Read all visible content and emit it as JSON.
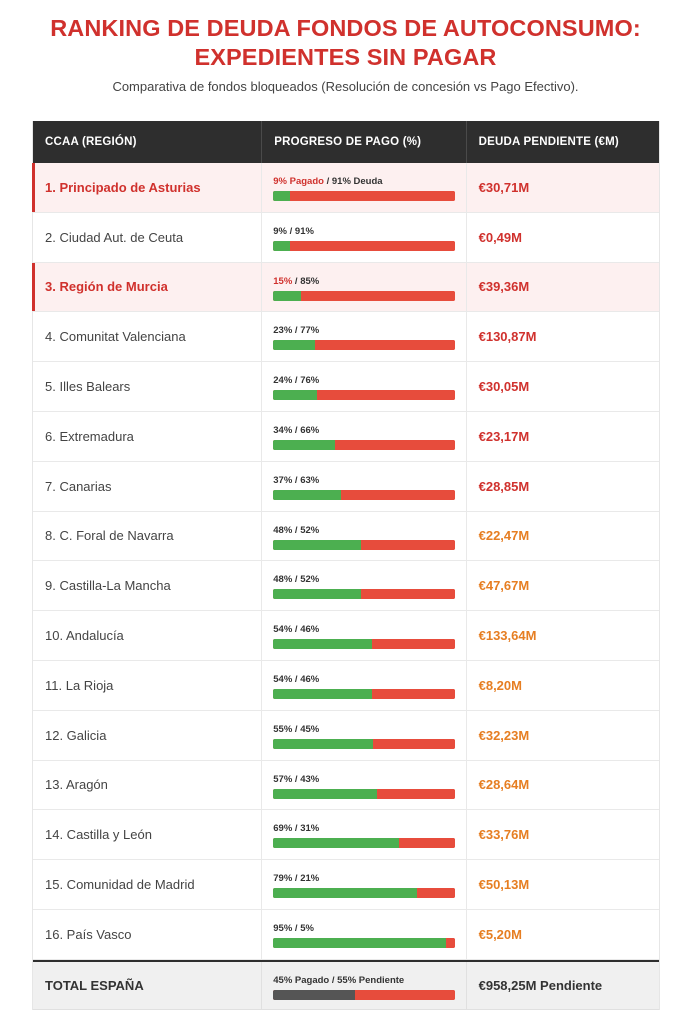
{
  "header": {
    "title_line1": "RANKING DE DEUDA FONDOS DE AUTOCONSUMO:",
    "title_line2": "EXPEDIENTES SIN PAGAR",
    "subtitle": "Comparativa de fondos bloqueados (Resolución de concesión vs Pago Efectivo)."
  },
  "columns": {
    "region": "CCAA (REGIÓN)",
    "progress": "PROGRESO DE PAGO (%)",
    "debt": "DEUDA PENDIENTE (€M)"
  },
  "colors": {
    "accent_red": "#d0312d",
    "paid_green": "#4caf50",
    "due_red": "#e74c3c",
    "orange": "#e67e22",
    "total_paid": "#555555"
  },
  "rows": [
    {
      "region": "1. Principado de Asturias",
      "paid_pct": 9,
      "label_paid": "9% Pagado",
      "label_due": " / 91% Deuda",
      "debt": "€30,71M",
      "debt_color": "#d0312d",
      "highlight": true
    },
    {
      "region": "2. Ciudad Aut. de Ceuta",
      "paid_pct": 9,
      "label_paid": "",
      "label_due": "9% / 91%",
      "debt": "€0,49M",
      "debt_color": "#d0312d",
      "highlight": false
    },
    {
      "region": "3. Región de Murcia",
      "paid_pct": 15,
      "label_paid": "15%",
      "label_due": " / 85%",
      "debt": "€39,36M",
      "debt_color": "#d0312d",
      "highlight": true
    },
    {
      "region": "4. Comunitat Valenciana",
      "paid_pct": 23,
      "label_paid": "",
      "label_due": "23% / 77%",
      "debt": "€130,87M",
      "debt_color": "#d0312d",
      "highlight": false
    },
    {
      "region": "5. Illes Balears",
      "paid_pct": 24,
      "label_paid": "",
      "label_due": "24% / 76%",
      "debt": "€30,05M",
      "debt_color": "#d0312d",
      "highlight": false
    },
    {
      "region": "6. Extremadura",
      "paid_pct": 34,
      "label_paid": "",
      "label_due": "34% / 66%",
      "debt": "€23,17M",
      "debt_color": "#d0312d",
      "highlight": false
    },
    {
      "region": "7. Canarias",
      "paid_pct": 37,
      "label_paid": "",
      "label_due": "37% / 63%",
      "debt": "€28,85M",
      "debt_color": "#d0312d",
      "highlight": false
    },
    {
      "region": "8. C. Foral de Navarra",
      "paid_pct": 48,
      "label_paid": "",
      "label_due": "48% / 52%",
      "debt": "€22,47M",
      "debt_color": "#e67e22",
      "highlight": false
    },
    {
      "region": "9. Castilla-La Mancha",
      "paid_pct": 48,
      "label_paid": "",
      "label_due": "48% / 52%",
      "debt": "€47,67M",
      "debt_color": "#e67e22",
      "highlight": false
    },
    {
      "region": "10. Andalucía",
      "paid_pct": 54,
      "label_paid": "",
      "label_due": "54% / 46%",
      "debt": "€133,64M",
      "debt_color": "#e67e22",
      "highlight": false
    },
    {
      "region": "11. La Rioja",
      "paid_pct": 54,
      "label_paid": "",
      "label_due": "54% / 46%",
      "debt": "€8,20M",
      "debt_color": "#e67e22",
      "highlight": false
    },
    {
      "region": "12. Galicia",
      "paid_pct": 55,
      "label_paid": "",
      "label_due": "55% / 45%",
      "debt": "€32,23M",
      "debt_color": "#e67e22",
      "highlight": false
    },
    {
      "region": "13. Aragón",
      "paid_pct": 57,
      "label_paid": "",
      "label_due": "57% / 43%",
      "debt": "€28,64M",
      "debt_color": "#e67e22",
      "highlight": false
    },
    {
      "region": "14. Castilla y León",
      "paid_pct": 69,
      "label_paid": "",
      "label_due": "69% / 31%",
      "debt": "€33,76M",
      "debt_color": "#e67e22",
      "highlight": false
    },
    {
      "region": "15. Comunidad de Madrid",
      "paid_pct": 79,
      "label_paid": "",
      "label_due": "79% / 21%",
      "debt": "€50,13M",
      "debt_color": "#e67e22",
      "highlight": false
    },
    {
      "region": "16. País Vasco",
      "paid_pct": 95,
      "label_paid": "",
      "label_due": "95% / 5%",
      "debt": "€5,20M",
      "debt_color": "#e67e22",
      "highlight": false
    }
  ],
  "total": {
    "region": "TOTAL ESPAÑA",
    "paid_pct": 45,
    "label": "45% Pagado / 55% Pendiente",
    "debt": "€958,25M Pendiente"
  }
}
